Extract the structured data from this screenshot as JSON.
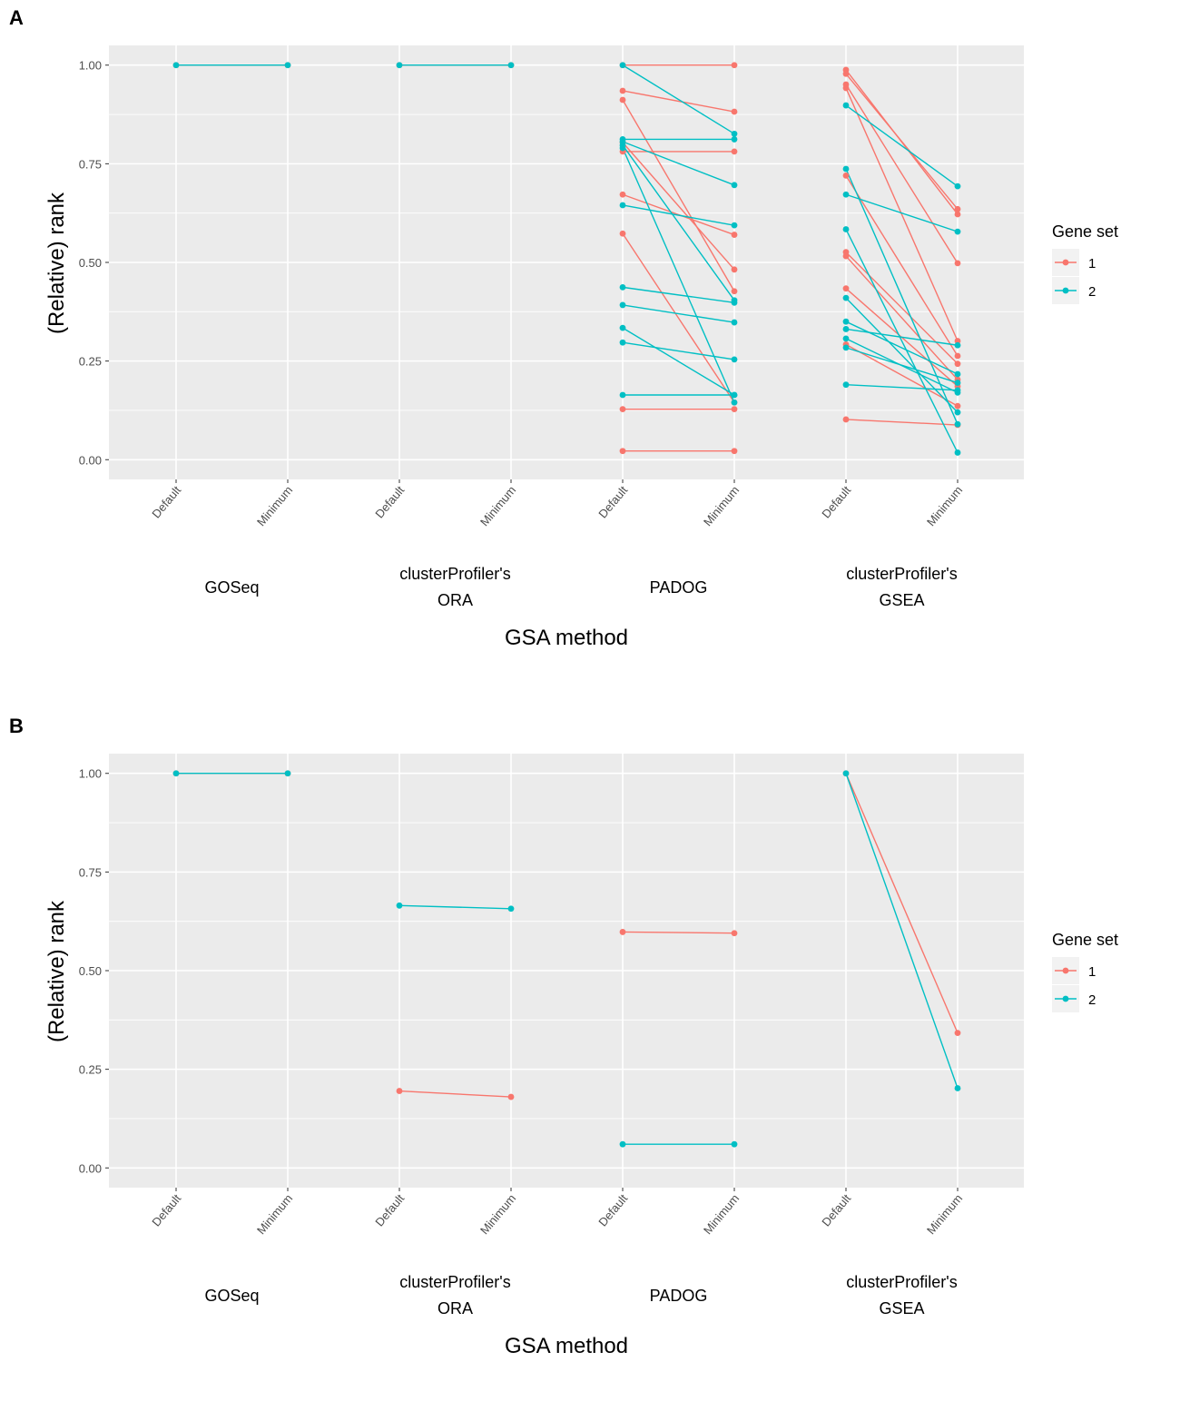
{
  "chart_data": [
    {
      "panel_label": "A",
      "type": "line",
      "ylabel": "(Relative) rank",
      "xlabel": "GSA method",
      "ylim": [
        -0.05,
        1.05
      ],
      "y_ticks": [
        "0.00",
        "0.25",
        "0.50",
        "0.75",
        "1.00"
      ],
      "y_tick_values": [
        0,
        0.25,
        0.5,
        0.75,
        1
      ],
      "x_tick_labels": [
        "Default",
        "Minimum",
        "Default",
        "Minimum",
        "Default",
        "Minimum",
        "Default",
        "Minimum"
      ],
      "groups": [
        {
          "lines": [
            "GOSeq"
          ]
        },
        {
          "lines": [
            "clusterProfiler's",
            "ORA"
          ]
        },
        {
          "lines": [
            "PADOG"
          ]
        },
        {
          "lines": [
            "clusterProfiler's",
            "GSEA"
          ]
        }
      ],
      "legend": {
        "title": "Gene set",
        "position": "right",
        "entries": [
          "1",
          "2"
        ]
      },
      "colors": {
        "1": "#F8766D",
        "2": "#00BFC4"
      },
      "series": [
        {
          "method": "GOSeq",
          "gene_set": "1",
          "pairs": [
            [
              1.0,
              1.0
            ]
          ]
        },
        {
          "method": "GOSeq",
          "gene_set": "2",
          "pairs": [
            [
              1.0,
              1.0
            ]
          ]
        },
        {
          "method": "clusterProfiler's ORA",
          "gene_set": "1",
          "pairs": [
            [
              1.0,
              1.0
            ]
          ]
        },
        {
          "method": "clusterProfiler's ORA",
          "gene_set": "2",
          "pairs": [
            [
              1.0,
              1.0
            ]
          ]
        },
        {
          "method": "PADOG",
          "gene_set": "1",
          "pairs": [
            [
              1.0,
              1.0
            ],
            [
              0.935,
              0.882
            ],
            [
              0.912,
              0.427
            ],
            [
              0.804,
              0.482
            ],
            [
              0.781,
              0.781
            ],
            [
              0.672,
              0.57
            ],
            [
              0.573,
              0.145
            ],
            [
              0.128,
              0.128
            ],
            [
              0.022,
              0.022
            ]
          ]
        },
        {
          "method": "PADOG",
          "gene_set": "2",
          "pairs": [
            [
              1.0,
              0.826
            ],
            [
              0.812,
              0.812
            ],
            [
              0.806,
              0.696
            ],
            [
              0.797,
              0.404
            ],
            [
              0.79,
              0.145
            ],
            [
              0.645,
              0.594
            ],
            [
              0.437,
              0.398
            ],
            [
              0.392,
              0.348
            ],
            [
              0.334,
              0.164
            ],
            [
              0.297,
              0.254
            ],
            [
              0.164,
              0.164
            ]
          ]
        },
        {
          "method": "clusterProfiler's GSEA",
          "gene_set": "1",
          "pairs": [
            [
              0.988,
              0.622
            ],
            [
              0.978,
              0.635
            ],
            [
              0.951,
              0.498
            ],
            [
              0.942,
              0.301
            ],
            [
              0.72,
              0.263
            ],
            [
              0.526,
              0.243
            ],
            [
              0.516,
              0.203
            ],
            [
              0.434,
              0.186
            ],
            [
              0.292,
              0.136
            ],
            [
              0.102,
              0.088
            ]
          ]
        },
        {
          "method": "clusterProfiler's GSEA",
          "gene_set": "2",
          "pairs": [
            [
              0.898,
              0.693
            ],
            [
              0.737,
              0.09
            ],
            [
              0.672,
              0.578
            ],
            [
              0.584,
              0.018
            ],
            [
              0.41,
              0.12
            ],
            [
              0.35,
              0.217
            ],
            [
              0.331,
              0.29
            ],
            [
              0.307,
              0.17
            ],
            [
              0.284,
              0.195
            ],
            [
              0.19,
              0.176
            ]
          ]
        }
      ]
    },
    {
      "panel_label": "B",
      "type": "line",
      "ylabel": "(Relative) rank",
      "xlabel": "GSA method",
      "ylim": [
        -0.05,
        1.05
      ],
      "y_ticks": [
        "0.00",
        "0.25",
        "0.50",
        "0.75",
        "1.00"
      ],
      "y_tick_values": [
        0,
        0.25,
        0.5,
        0.75,
        1
      ],
      "x_tick_labels": [
        "Default",
        "Minimum",
        "Default",
        "Minimum",
        "Default",
        "Minimum",
        "Default",
        "Minimum"
      ],
      "groups": [
        {
          "lines": [
            "GOSeq"
          ]
        },
        {
          "lines": [
            "clusterProfiler's",
            "ORA"
          ]
        },
        {
          "lines": [
            "PADOG"
          ]
        },
        {
          "lines": [
            "clusterProfiler's",
            "GSEA"
          ]
        }
      ],
      "legend": {
        "title": "Gene set",
        "position": "right",
        "entries": [
          "1",
          "2"
        ]
      },
      "colors": {
        "1": "#F8766D",
        "2": "#00BFC4"
      },
      "series": [
        {
          "method": "GOSeq",
          "gene_set": "1",
          "pairs": [
            [
              1.0,
              1.0
            ]
          ]
        },
        {
          "method": "GOSeq",
          "gene_set": "2",
          "pairs": [
            [
              1.0,
              1.0
            ]
          ]
        },
        {
          "method": "clusterProfiler's ORA",
          "gene_set": "1",
          "pairs": [
            [
              0.195,
              0.18
            ]
          ]
        },
        {
          "method": "clusterProfiler's ORA",
          "gene_set": "2",
          "pairs": [
            [
              0.665,
              0.657
            ]
          ]
        },
        {
          "method": "PADOG",
          "gene_set": "1",
          "pairs": [
            [
              0.598,
              0.595
            ]
          ]
        },
        {
          "method": "PADOG",
          "gene_set": "2",
          "pairs": [
            [
              0.06,
              0.06
            ]
          ]
        },
        {
          "method": "clusterProfiler's GSEA",
          "gene_set": "1",
          "pairs": [
            [
              1.0,
              0.342
            ]
          ]
        },
        {
          "method": "clusterProfiler's GSEA",
          "gene_set": "2",
          "pairs": [
            [
              1.0,
              0.202
            ]
          ]
        }
      ]
    }
  ]
}
